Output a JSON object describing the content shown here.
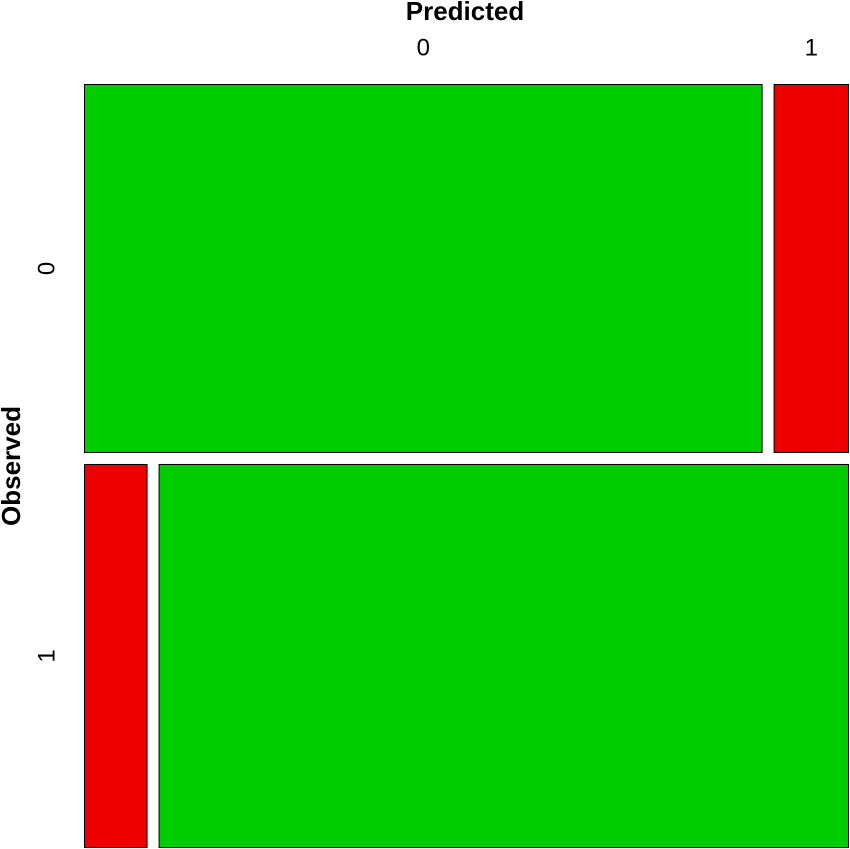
{
  "chart_data": {
    "type": "mosaic",
    "x_label": "Predicted",
    "y_label": "Observed",
    "columns": [
      "0",
      "1"
    ],
    "rows": [
      "0",
      "1"
    ],
    "values": [
      [
        44.1,
        4.9
      ],
      [
        4.3,
        46.7
      ]
    ],
    "colors": [
      [
        "#00cc00",
        "#ee0000"
      ],
      [
        "#ee0000",
        "#00cc00"
      ]
    ]
  }
}
